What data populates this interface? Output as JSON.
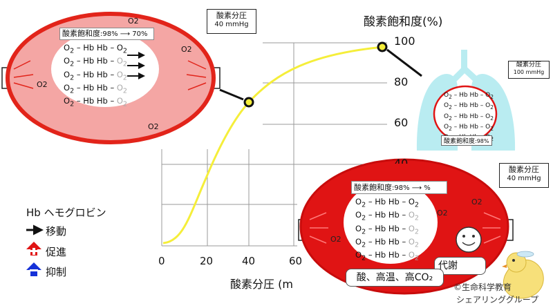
{
  "graph": {
    "y_title": "酸素飽和度(%)",
    "x_title": "酸素分圧 (m",
    "y_ticks": [
      "100",
      "80",
      "60",
      "40"
    ],
    "x_ticks": [
      "0",
      "20",
      "40",
      "60"
    ],
    "curve_color": "#f5ee3a"
  },
  "tissue_cell": {
    "saturation_label": "酸素飽和度",
    "saturation_value": ":98% ⟶ 70%",
    "hb_row": "– Hb  Hb –",
    "o2_labels": [
      "O2",
      "O2",
      "O2",
      "O2"
    ],
    "callout_title": "酸素分圧",
    "callout_value": "40 mmHg",
    "fill_color": "#f4a6a4",
    "border_color": "#e2241a"
  },
  "lung": {
    "callout_title": "酸素分圧",
    "callout_value": "100 mmHg",
    "hb_row": "– Hb  Hb –",
    "saturation_label": "酸素飽和度",
    "saturation_value": ":98%",
    "color": "#b9ecf1"
  },
  "active_cell": {
    "saturation_label": "酸素飽和度",
    "saturation_value": ":98% ⟶      %",
    "hb_row": "– Hb  Hb –",
    "o2_labels": [
      "O2",
      "O2",
      "O2"
    ],
    "callout_title": "酸素分圧",
    "callout_value": "40 mmHg",
    "metabolism_label": "代謝",
    "conditions_label": "酸、高温、高CO₂",
    "fill_color": "#e01414"
  },
  "legend": {
    "hb_label": "Hb ヘモグロビン",
    "move_label": "移動",
    "promote_label": "促進",
    "inhibit_label": "抑制"
  },
  "credit": {
    "line1": "©生命科学教育",
    "line2": "シェアリンググループ"
  }
}
